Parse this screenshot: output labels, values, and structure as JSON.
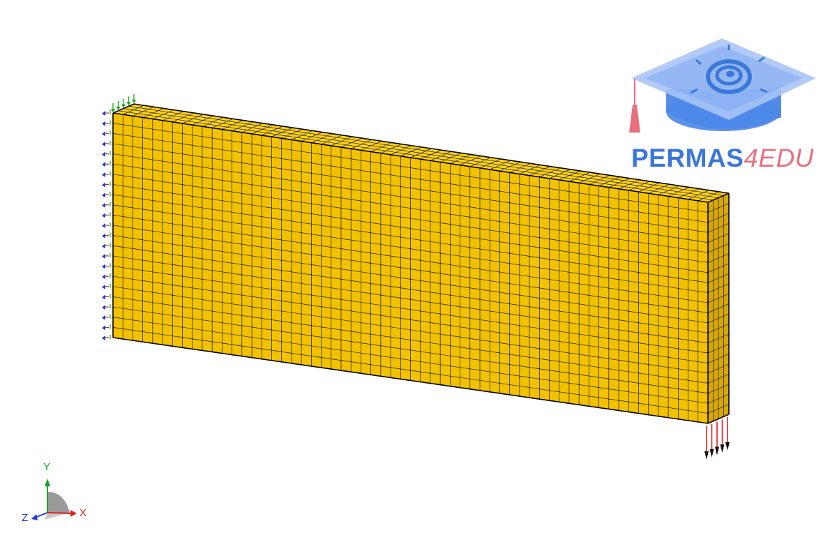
{
  "logo": {
    "brand_main": "PERMAS",
    "brand_accent": "4EDU",
    "colors": {
      "main": "#3b78d8",
      "accent": "#e8707e",
      "cap": "#5b8def"
    }
  },
  "model": {
    "element_grid": {
      "length_divisions": 60,
      "height_divisions": 22,
      "depth_divisions": 4
    },
    "colors": {
      "front": "#f2c200",
      "top": "#ffd21a",
      "side": "#d9a800",
      "edge": "#1a1a1a"
    },
    "fixed_support_icon": "clamp-arrows",
    "load_icon": "force-arrows-down",
    "load_arrow_count": 5
  },
  "triad": {
    "x_label": "X",
    "y_label": "Y",
    "z_label": "Z",
    "colors": {
      "x": "#e0201e",
      "y": "#17a817",
      "z": "#1f3ddf"
    }
  }
}
